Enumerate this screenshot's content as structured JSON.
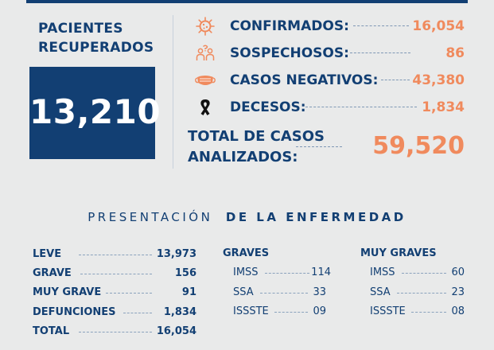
{
  "recuperados": {
    "label_line1": "PACIENTES",
    "label_line2": "RECUPERADOS",
    "value": "13,210"
  },
  "stats": [
    {
      "icon": "virus-icon",
      "label": "CONFIRMADOS:",
      "value": "16,054"
    },
    {
      "icon": "suspect-people-icon",
      "label": "SOSPECHOSOS:",
      "value": "86"
    },
    {
      "icon": "face-mask-icon",
      "label": "CASOS NEGATIVOS:",
      "value": "43,380"
    },
    {
      "icon": "mourning-ribbon-icon",
      "label": "DECESOS:",
      "value": "1,834"
    }
  ],
  "total": {
    "label_line1": "TOTAL DE CASOS",
    "label_line2": "ANALIZADOS:",
    "value": "59,520"
  },
  "presentacion": {
    "light": "PRESENTACIÓN",
    "bold": "DE LA ENFERMEDAD"
  },
  "severidad": [
    {
      "label": "LEVE",
      "value": "13,973"
    },
    {
      "label": "GRAVE",
      "value": "156"
    },
    {
      "label": "MUY GRAVE",
      "value": "91"
    },
    {
      "label": "DEFUNCIONES",
      "value": "1,834"
    },
    {
      "label": "TOTAL",
      "value": "16,054"
    }
  ],
  "graves": {
    "title": "GRAVES",
    "rows": [
      {
        "label": "IMSS",
        "value": "114"
      },
      {
        "label": "SSA",
        "value": "33"
      },
      {
        "label": "ISSSTE",
        "value": "09"
      }
    ]
  },
  "muy_graves": {
    "title": "MUY GRAVES",
    "rows": [
      {
        "label": "IMSS",
        "value": "60"
      },
      {
        "label": "SSA",
        "value": "23"
      },
      {
        "label": "ISSSTE",
        "value": "08"
      }
    ]
  },
  "colors": {
    "navy": "#123f73",
    "orange": "#f08a5d",
    "background": "#e9eaea"
  }
}
